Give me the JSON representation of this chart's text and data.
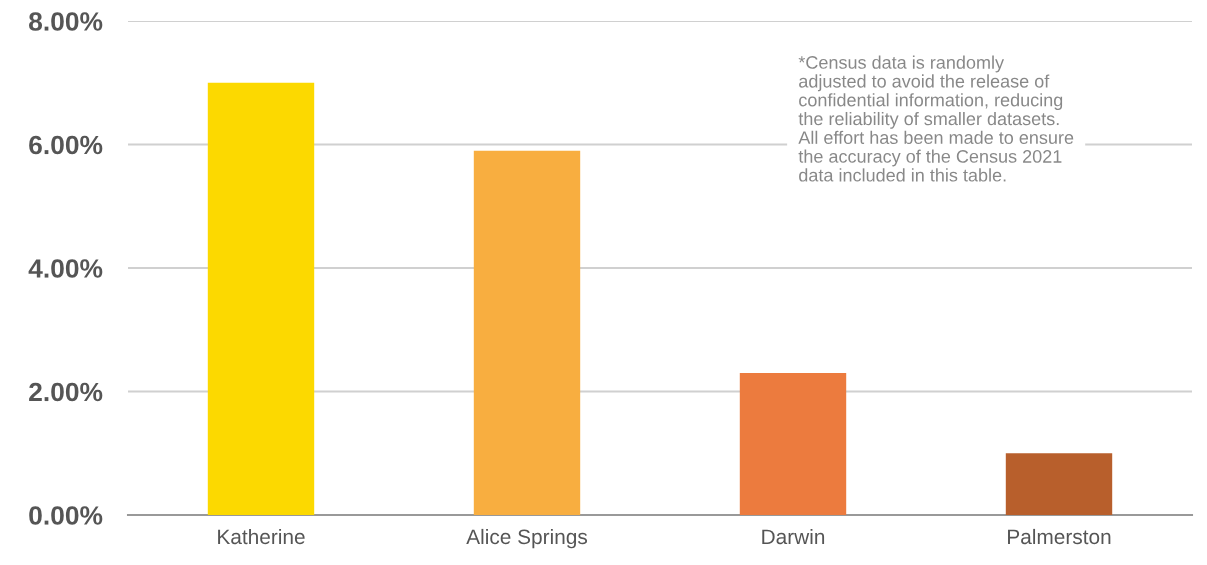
{
  "chart_data": {
    "type": "bar",
    "categories": [
      "Katherine",
      "Alice Springs",
      "Darwin",
      "Palmerston"
    ],
    "values": [
      7.0,
      5.9,
      2.3,
      1.0
    ],
    "colors": [
      "#fcd900",
      "#f8ae40",
      "#ec7b3e",
      "#b85f2c"
    ],
    "ylim": [
      0,
      8
    ],
    "yticks": [
      {
        "value": 0,
        "label": "0.00%"
      },
      {
        "value": 2,
        "label": "2.00%"
      },
      {
        "value": 4,
        "label": "4.00%"
      },
      {
        "value": 6,
        "label": "6.00%"
      },
      {
        "value": 8,
        "label": "8.00%"
      }
    ],
    "grid": "y",
    "annotations": [
      "*Census data is randomly\nadjusted to avoid the release of\nconfidential information, reducing\nthe reliability of smaller datasets.\nAll effort has been made to ensure\nthe accuracy of the Census 2021\ndata included in this table."
    ]
  }
}
